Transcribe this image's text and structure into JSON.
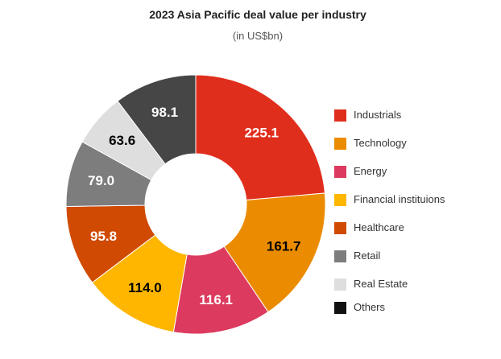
{
  "chart_data": {
    "type": "donut",
    "title": "2023 Asia Pacific deal value per industry",
    "subtitle": "(in US$bn)",
    "unit": "US$bn",
    "legend_position": "right",
    "slices": [
      {
        "name": "Industrials",
        "value": 225.1,
        "label": "225.1",
        "color": "#e02e1c",
        "label_color": "#ffffff"
      },
      {
        "name": "Technology",
        "value": 161.7,
        "label": "161.7",
        "color": "#eb8c00",
        "label_color": "#000000"
      },
      {
        "name": "Energy",
        "value": 116.1,
        "label": "116.1",
        "color": "#dc3a5e",
        "label_color": "#ffffff"
      },
      {
        "name": "Financial instituions",
        "value": 114.0,
        "label": "114.0",
        "color": "#ffb600",
        "label_color": "#000000"
      },
      {
        "name": "Healthcare",
        "value": 95.8,
        "label": "95.8",
        "color": "#d04a02",
        "label_color": "#ffffff"
      },
      {
        "name": "Retail",
        "value": 79.0,
        "label": "79.0",
        "color": "#7d7d7d",
        "label_color": "#ffffff"
      },
      {
        "name": "Real Estate",
        "value": 63.6,
        "label": "63.6",
        "color": "#dedede",
        "label_color": "#000000"
      },
      {
        "name": "Others",
        "value": 98.1,
        "label": "98.1",
        "color": "#464646",
        "label_color": "#ffffff"
      }
    ],
    "legend": [
      {
        "label": "Industrials",
        "color": "#e02e1c"
      },
      {
        "label": "Technology",
        "color": "#eb8c00"
      },
      {
        "label": "Energy",
        "color": "#dc3a5e"
      },
      {
        "label": "Financial instituions",
        "color": "#ffb600"
      },
      {
        "label": "Healthcare",
        "color": "#d04a02"
      },
      {
        "label": "Retail",
        "color": "#7d7d7d"
      },
      {
        "label": "Real Estate",
        "color": "#dedede"
      },
      {
        "label": "Others",
        "color": "#111111"
      }
    ]
  }
}
